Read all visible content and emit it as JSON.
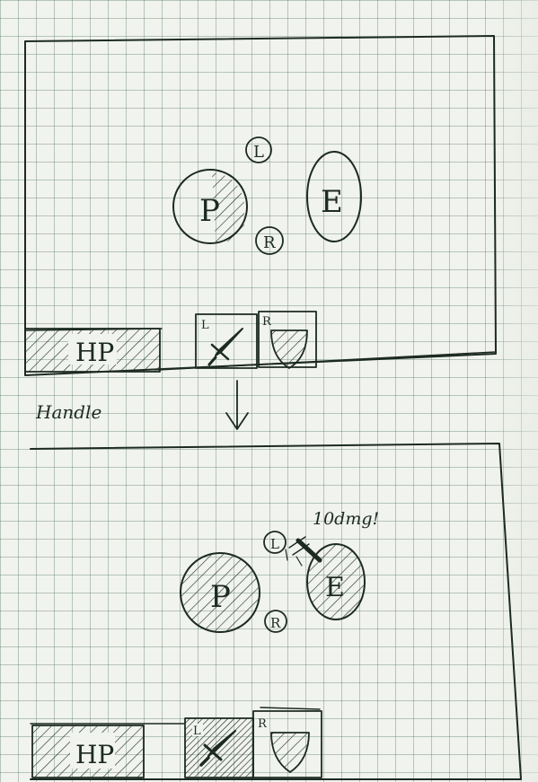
{
  "before": {
    "player_label": "P",
    "enemy_label": "E",
    "left_hand_label": "L",
    "right_hand_label": "R",
    "hp_label": "HP",
    "slot_left_label": "L",
    "slot_right_label": "R"
  },
  "annotation": {
    "scribble": "Handle",
    "arrow_direction": "down"
  },
  "after": {
    "player_label": "P",
    "enemy_label": "E",
    "left_hand_label": "L",
    "right_hand_label": "R",
    "hp_label": "HP",
    "slot_left_label": "L",
    "slot_right_label": "R",
    "damage_text": "10dmg!"
  }
}
